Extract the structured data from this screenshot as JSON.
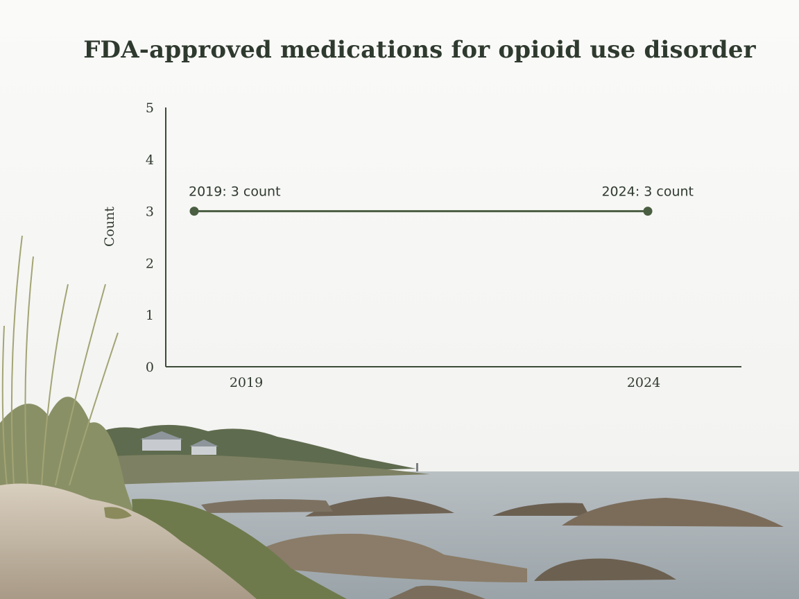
{
  "title": "FDA-approved medications for opioid use disorder",
  "chart_data": {
    "type": "line",
    "title": "FDA-approved medications for opioid use disorder",
    "xlabel": "",
    "ylabel": "Count",
    "x": [
      "2019",
      "2024"
    ],
    "series": [
      {
        "values": [
          3,
          3
        ]
      }
    ],
    "ylim": [
      0,
      5
    ],
    "yticks": [
      "0",
      "1",
      "2",
      "3",
      "4",
      "5"
    ],
    "annotations": [
      "2019: 3 count",
      "2024: 3 count"
    ],
    "grid": false,
    "line_color": "#4a5e42",
    "axis_color": "#3b4a36"
  }
}
